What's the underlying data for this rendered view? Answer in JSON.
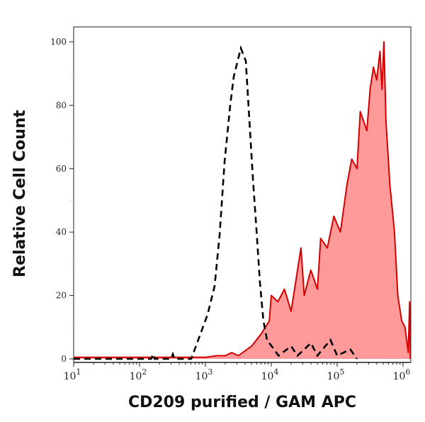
{
  "chart_data": {
    "type": "area",
    "title": "",
    "xlabel": "CD209 purified / GAM APC",
    "ylabel": "Relative Cell Count",
    "x_scale": "log",
    "xlim": [
      8,
      1320000
    ],
    "ylim": [
      -1,
      105
    ],
    "grid": false,
    "legend": "none",
    "x_ticks": [
      {
        "value": 10,
        "base": "10",
        "exp": "1"
      },
      {
        "value": 100,
        "base": "10",
        "exp": "2"
      },
      {
        "value": 1000,
        "base": "10",
        "exp": "3"
      },
      {
        "value": 10000,
        "base": "10",
        "exp": "4"
      },
      {
        "value": 100000,
        "base": "10",
        "exp": "5"
      },
      {
        "value": 1000000,
        "base": "10",
        "exp": "6"
      }
    ],
    "y_ticks": [
      {
        "value": 0,
        "label": "0"
      },
      {
        "value": 20,
        "label": "20"
      },
      {
        "value": 40,
        "label": "40"
      },
      {
        "value": 60,
        "label": "60"
      },
      {
        "value": 80,
        "label": "80"
      },
      {
        "value": 100,
        "label": "100"
      }
    ],
    "series": [
      {
        "style": "filled",
        "color": "#d40000",
        "fill": "#ff9a9a",
        "x": [
          8,
          1000,
          1500,
          2000,
          2500,
          3160,
          5010,
          7080,
          9330,
          10000,
          12600,
          15800,
          20000,
          28200,
          31600,
          39800,
          50100,
          56200,
          70800,
          89100,
          112000,
          141000,
          166000,
          200000,
          224000,
          282000,
          316000,
          355000,
          398000,
          447000,
          479000,
          513000,
          550000,
          631000,
          741000,
          832000,
          955000,
          1070000,
          1200000,
          1260000,
          1290000
        ],
        "y": [
          0.5,
          0.5,
          1,
          1,
          2,
          1,
          4,
          8,
          12,
          20,
          18,
          22,
          15,
          35,
          20,
          28,
          22,
          38,
          35,
          45,
          40,
          55,
          63,
          60,
          78,
          72,
          85,
          92,
          88,
          97,
          85,
          100,
          75,
          55,
          40,
          20,
          12,
          10,
          2,
          18,
          0
        ]
      },
      {
        "style": "dashed",
        "color": "#000000",
        "x": [
          8,
          150,
          160,
          170,
          300,
          320,
          340,
          500,
          610,
          1080,
          1380,
          1640,
          1950,
          2380,
          2690,
          3450,
          4100,
          4420,
          5250,
          5940,
          6730,
          7590,
          8610,
          12900,
          20000,
          25000,
          40000,
          50000,
          79000,
          100000,
          158000,
          200000
        ],
        "y": [
          0,
          0,
          1.5,
          0,
          0,
          1.5,
          0,
          0,
          0,
          14,
          23,
          39,
          62,
          80,
          89,
          98,
          94,
          83,
          57,
          41,
          24,
          12,
          6,
          1,
          4,
          1,
          5,
          1,
          6,
          1,
          3,
          0
        ]
      }
    ]
  }
}
